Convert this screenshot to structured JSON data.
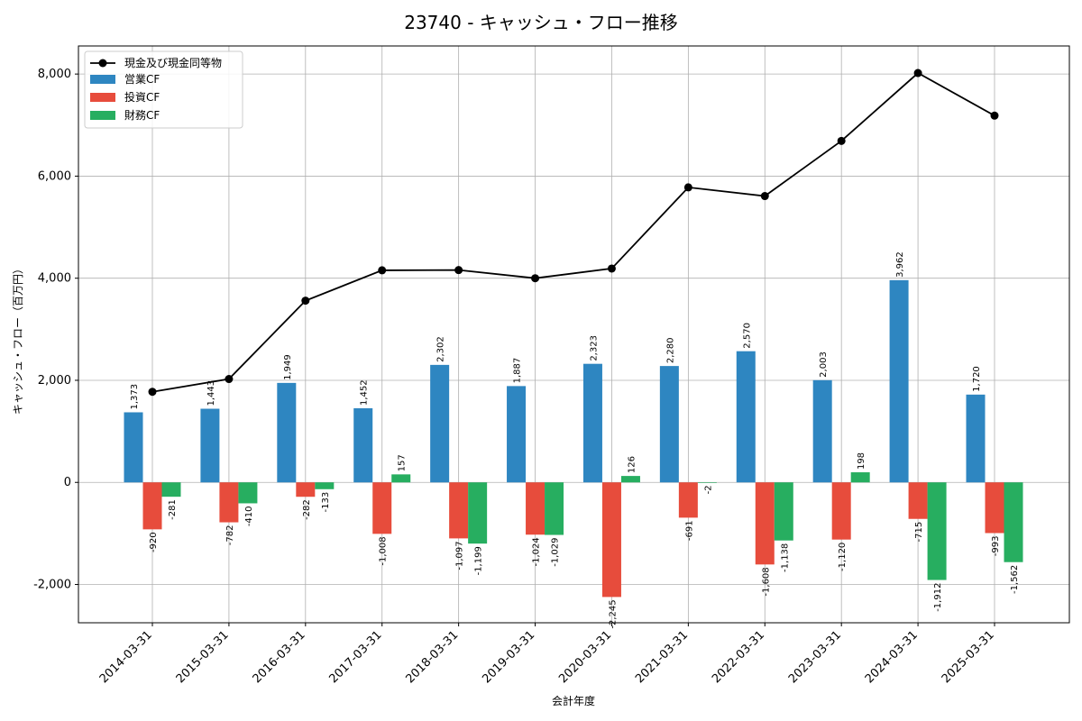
{
  "chart_data": {
    "type": "bar",
    "title": "23740 - キャッシュ・フロー推移",
    "xlabel": "会計年度",
    "ylabel": "キャッシュ・フロー（百万円）",
    "ylim": [
      -2750,
      8550
    ],
    "yticks": [
      -2000,
      0,
      2000,
      4000,
      6000,
      8000
    ],
    "ytick_labels": [
      "-2,000",
      "0",
      "2,000",
      "4,000",
      "6,000",
      "8,000"
    ],
    "grid": true,
    "legend_position": "top-left",
    "categories": [
      "2014-03-31",
      "2015-03-31",
      "2016-03-31",
      "2017-03-31",
      "2018-03-31",
      "2019-03-31",
      "2020-03-31",
      "2021-03-31",
      "2022-03-31",
      "2023-03-31",
      "2024-03-31",
      "2025-03-31"
    ],
    "series": [
      {
        "name": "営業CF",
        "type": "bar",
        "color": "#2e86c1",
        "values": [
          1373,
          1443,
          1949,
          1452,
          2302,
          1887,
          2323,
          2280,
          2570,
          2003,
          3962,
          1720
        ],
        "labels": [
          "1,373",
          "1,443",
          "1,949",
          "1,452",
          "2,302",
          "1,887",
          "2,323",
          "2,280",
          "2,570",
          "2,003",
          "3,962",
          "1,720"
        ]
      },
      {
        "name": "投資CF",
        "type": "bar",
        "color": "#e74c3c",
        "values": [
          -920,
          -782,
          -282,
          -1008,
          -1097,
          -1024,
          -2245,
          -691,
          -1608,
          -1120,
          -715,
          -993
        ],
        "labels": [
          "-920",
          "-782",
          "-282",
          "-1,008",
          "-1,097",
          "-1,024",
          "-2,245",
          "-691",
          "-1,608",
          "-1,120",
          "-715",
          "-993"
        ]
      },
      {
        "name": "財務CF",
        "type": "bar",
        "color": "#27ae60",
        "values": [
          -281,
          -410,
          -133,
          157,
          -1199,
          -1029,
          126,
          -2,
          -1138,
          198,
          -1912,
          -1562
        ],
        "labels": [
          "-281",
          "-410",
          "-133",
          "157",
          "-1,199",
          "-1,029",
          "126",
          "-2",
          "-1,138",
          "198",
          "-1,912",
          "-1,562"
        ]
      },
      {
        "name": "現金及び現金同等物",
        "type": "line",
        "color": "#000000",
        "values": [
          1775,
          2025,
          3560,
          4155,
          4160,
          4000,
          4190,
          5780,
          5610,
          6690,
          8020,
          7185
        ]
      }
    ]
  }
}
